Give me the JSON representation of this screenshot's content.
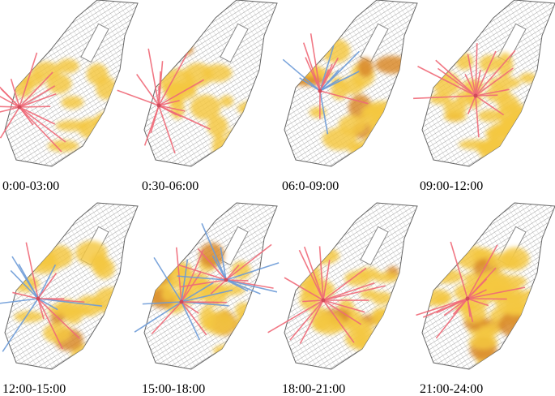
{
  "panels": [
    {
      "label": "0:00-03:00"
    },
    {
      "label": "0:30-06:00"
    },
    {
      "label": "06:0-09:00"
    },
    {
      "label": "09:00-12:00"
    },
    {
      "label": "12:00-15:00"
    },
    {
      "label": "15:00-18:00"
    },
    {
      "label": "18:00-21:00"
    },
    {
      "label": "21:00-24:00"
    }
  ]
}
